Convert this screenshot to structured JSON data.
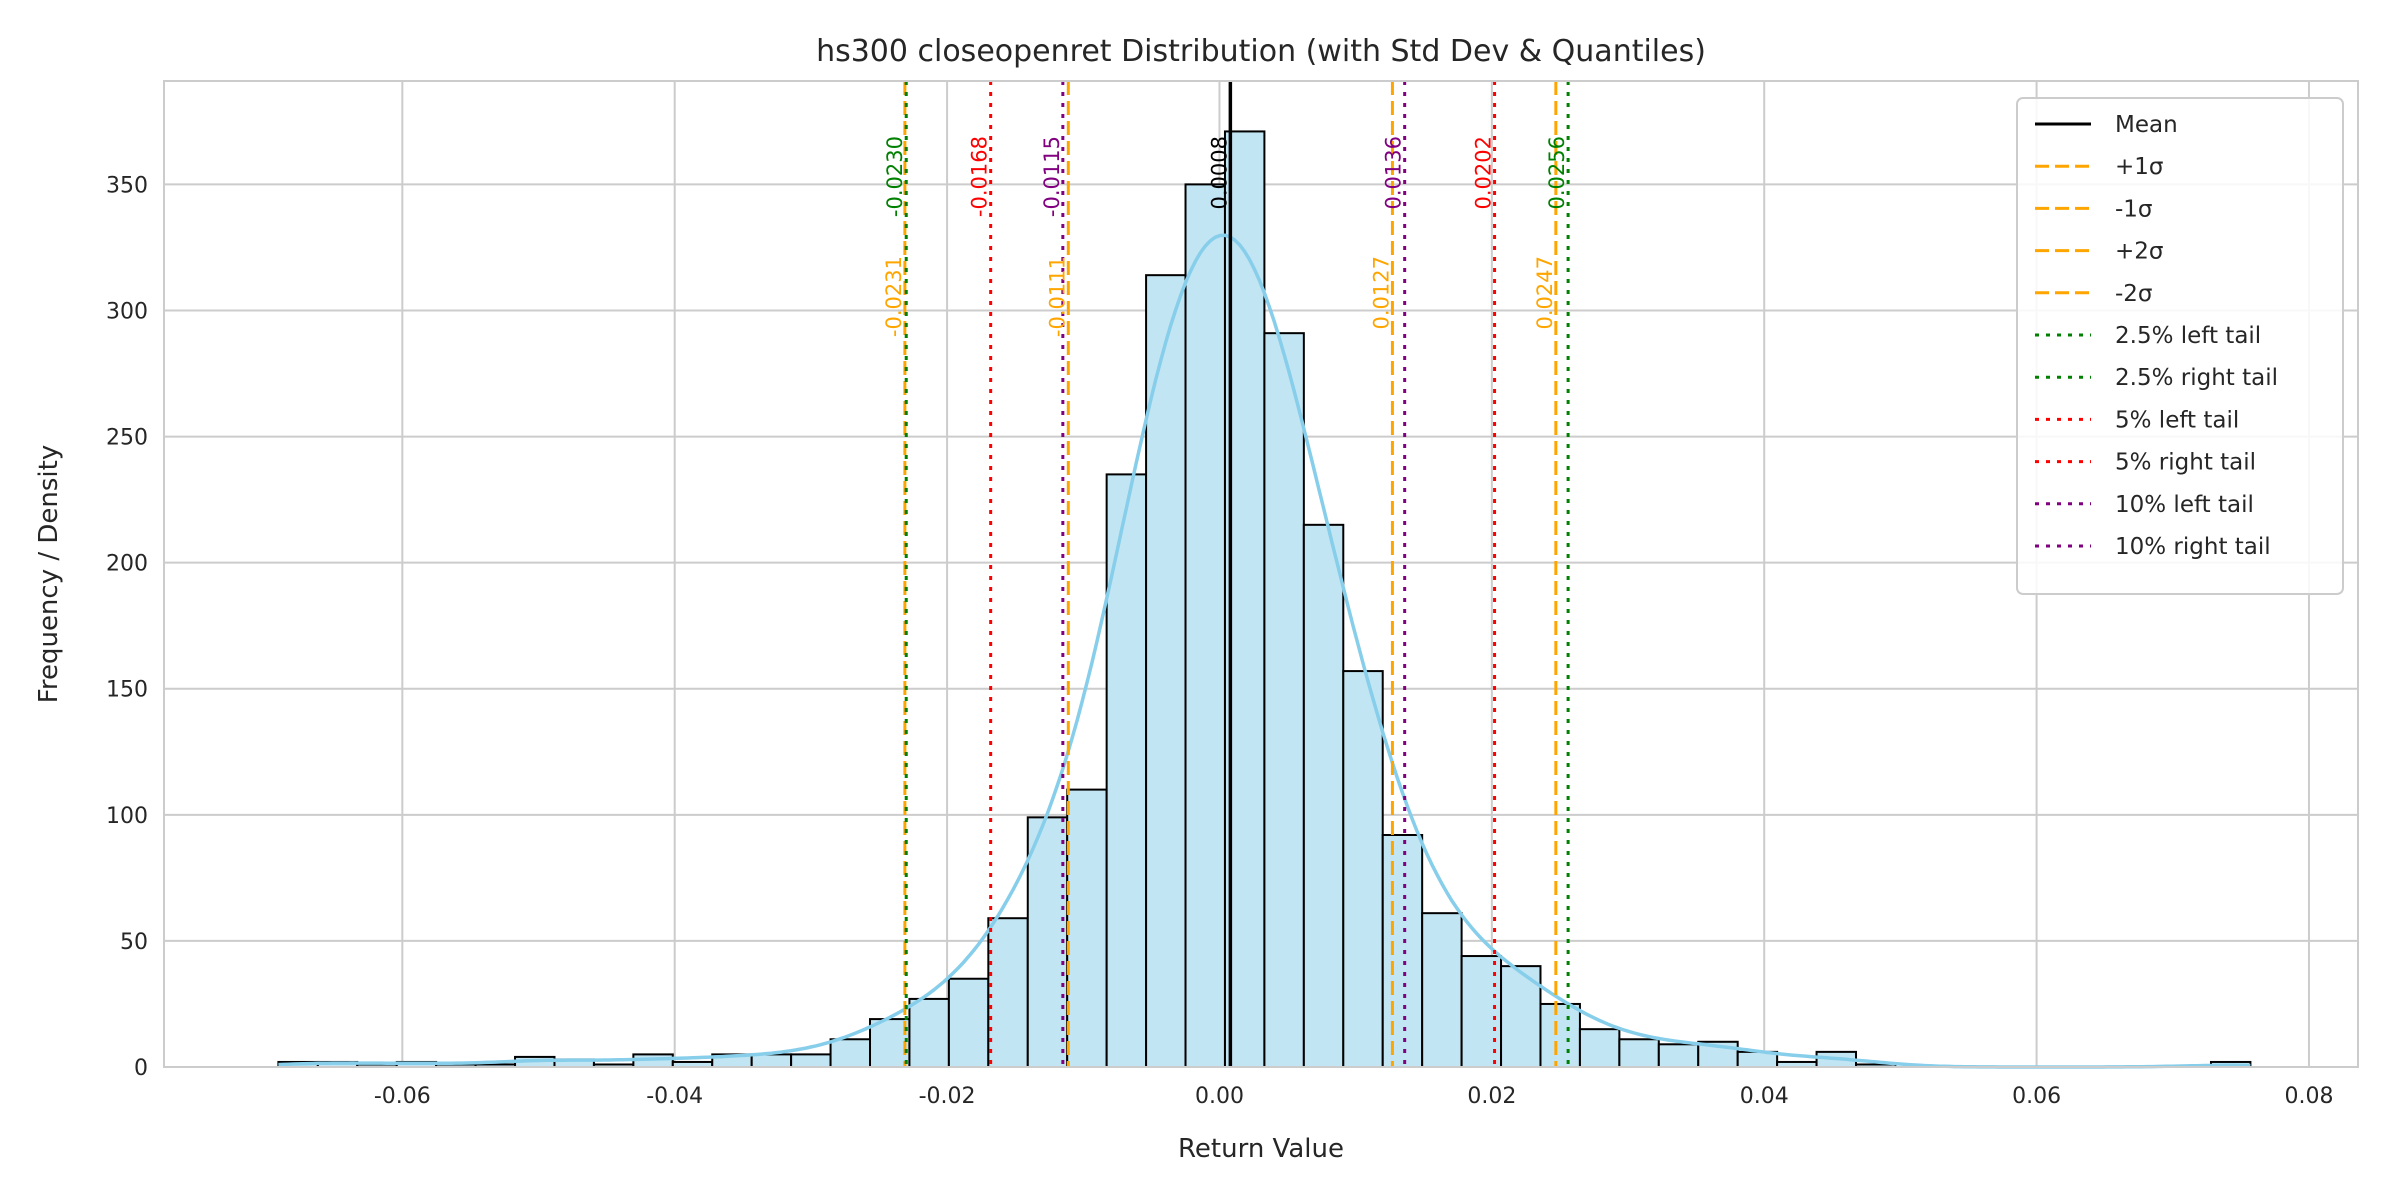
{
  "chart_data": {
    "type": "bar",
    "title": "hs300 closeopenret Distribution (with Std Dev & Quantiles)",
    "xlabel": "Return Value",
    "ylabel": "Frequency / Density",
    "xlim": [
      -0.0775,
      0.0836
    ],
    "ylim": [
      0,
      391
    ],
    "grid": true,
    "legend_placement": "top-right",
    "bins": {
      "start": -0.0691,
      "width": 0.002896,
      "counts": [
        2,
        2,
        1,
        2,
        1,
        1,
        4,
        3,
        1,
        5,
        2,
        5,
        5,
        5,
        11,
        19,
        27,
        35,
        59,
        99,
        110,
        235,
        314,
        350,
        371,
        291,
        215,
        157,
        92,
        61,
        44,
        40,
        25,
        15,
        11,
        9,
        10,
        6,
        2,
        6,
        1,
        0,
        0,
        0,
        0,
        0,
        0,
        0,
        0,
        2
      ]
    },
    "kde": {
      "color": "#87ceeb",
      "bandwidth": 0.0035
    },
    "x_ticks": [
      {
        "v": -0.06,
        "label": "-0.06"
      },
      {
        "v": -0.04,
        "label": "-0.04"
      },
      {
        "v": -0.02,
        "label": "-0.02"
      },
      {
        "v": 0.0,
        "label": "0.00"
      },
      {
        "v": 0.02,
        "label": "0.02"
      },
      {
        "v": 0.04,
        "label": "0.04"
      },
      {
        "v": 0.06,
        "label": "0.06"
      },
      {
        "v": 0.08,
        "label": "0.08"
      }
    ],
    "y_ticks": [
      {
        "v": 0,
        "label": "0"
      },
      {
        "v": 50,
        "label": "50"
      },
      {
        "v": 100,
        "label": "100"
      },
      {
        "v": 150,
        "label": "150"
      },
      {
        "v": 200,
        "label": "200"
      },
      {
        "v": 250,
        "label": "250"
      },
      {
        "v": 300,
        "label": "300"
      },
      {
        "v": 350,
        "label": "350"
      }
    ],
    "vlines": [
      {
        "name": "Mean",
        "value": 0.0008,
        "label": "0.0008",
        "color": "#000000",
        "style": "solid"
      },
      {
        "name": "+1σ",
        "value": 0.0127,
        "label": "0.0127",
        "color": "#ffa500",
        "style": "dashed"
      },
      {
        "name": "-1σ",
        "value": -0.0111,
        "label": "-0.0111",
        "color": "#ffa500",
        "style": "dashed"
      },
      {
        "name": "+2σ",
        "value": 0.0247,
        "label": "0.0247",
        "color": "#ffa500",
        "style": "dashed"
      },
      {
        "name": "-2σ",
        "value": -0.0231,
        "label": "-0.0231",
        "color": "#ffa500",
        "style": "dashed"
      },
      {
        "name": "2.5% left tail",
        "value": -0.023,
        "label": "-0.0230",
        "color": "#008000",
        "style": "dotted"
      },
      {
        "name": "2.5% right tail",
        "value": 0.0256,
        "label": "0.0256",
        "color": "#008000",
        "style": "dotted"
      },
      {
        "name": "5% left tail",
        "value": -0.0168,
        "label": "-0.0168",
        "color": "#ff0000",
        "style": "dotted"
      },
      {
        "name": "5% right tail",
        "value": 0.0202,
        "label": "0.0202",
        "color": "#ff0000",
        "style": "dotted"
      },
      {
        "name": "10% left tail",
        "value": -0.0115,
        "label": "-0.0115",
        "color": "#800080",
        "style": "dotted"
      },
      {
        "name": "10% right tail",
        "value": 0.0136,
        "label": "0.0136",
        "color": "#800080",
        "style": "dotted"
      }
    ],
    "bar_fill": "#c2e5f3",
    "bar_edge": "#000000"
  }
}
